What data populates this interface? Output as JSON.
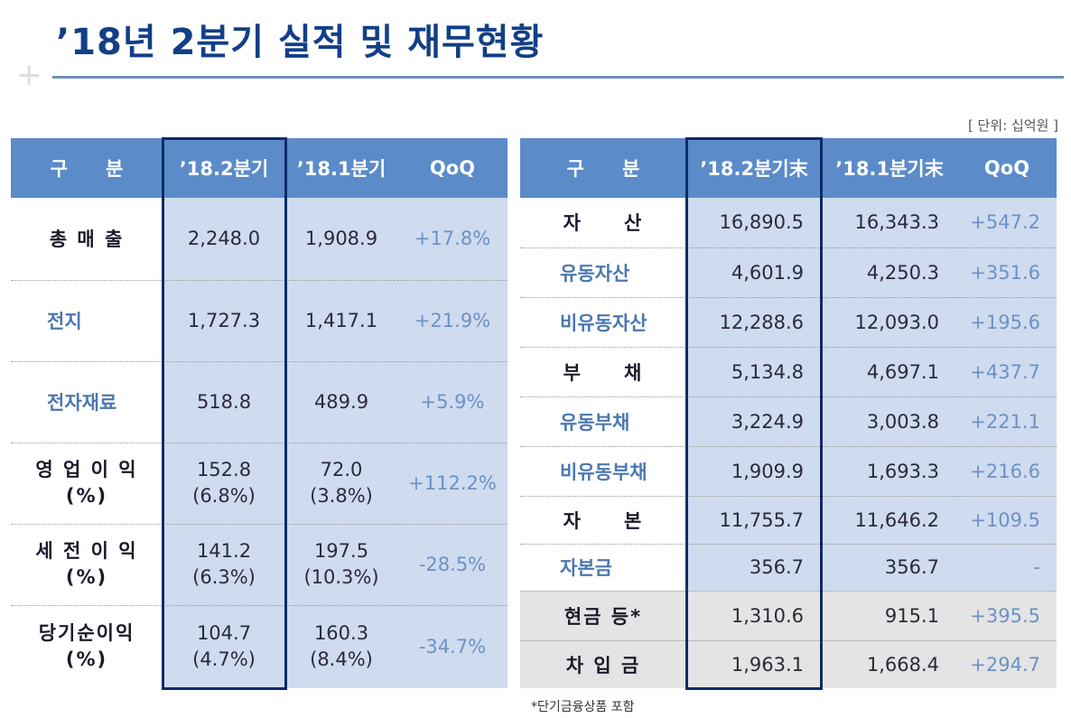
{
  "title": "’18년 2분기 실적 및 재무현황",
  "unit": "[ 단위: 십억원 ]",
  "footnote": "*단기금융상품 포함",
  "left": {
    "headers": [
      "구　　분",
      "’18.2분기",
      "’18.1분기",
      "QoQ"
    ],
    "rows": [
      {
        "label": "총 매 출",
        "a": "2,248.0",
        "b": "1,908.9",
        "q": "+17.8%"
      },
      {
        "label": "전지",
        "a": "1,727.3",
        "b": "1,417.1",
        "q": "+21.9%"
      },
      {
        "label": "전자재료",
        "a": "518.8",
        "b": "489.9",
        "q": "+5.9%"
      },
      {
        "label": "영 업 이 익",
        "label2": "(%)",
        "a": "152.8",
        "a2": "(6.8%)",
        "b": "72.0",
        "b2": "(3.8%)",
        "q": "+112.2%"
      },
      {
        "label": "세 전 이 익",
        "label2": "(%)",
        "a": "141.2",
        "a2": "(6.3%)",
        "b": "197.5",
        "b2": "(10.3%)",
        "q": "-28.5%"
      },
      {
        "label": "당기순이익",
        "label2": "(%)",
        "a": "104.7",
        "a2": "(4.7%)",
        "b": "160.3",
        "b2": "(8.4%)",
        "q": "-34.7%"
      }
    ]
  },
  "right": {
    "headers": [
      "구　　분",
      "’18.2분기末",
      "’18.1분기末",
      "QoQ"
    ],
    "rows": [
      {
        "label": "자　　산",
        "a": "16,890.5",
        "b": "16,343.3",
        "q": "+547.2"
      },
      {
        "label": "유동자산",
        "a": "4,601.9",
        "b": "4,250.3",
        "q": "+351.6"
      },
      {
        "label": "비유동자산",
        "a": "12,288.6",
        "b": "12,093.0",
        "q": "+195.6"
      },
      {
        "label": "부　　채",
        "a": "5,134.8",
        "b": "4,697.1",
        "q": "+437.7"
      },
      {
        "label": "유동부채",
        "a": "3,224.9",
        "b": "3,003.8",
        "q": "+221.1"
      },
      {
        "label": "비유동부채",
        "a": "1,909.9",
        "b": "1,693.3",
        "q": "+216.6"
      },
      {
        "label": "자　　본",
        "a": "11,755.7",
        "b": "11,646.2",
        "q": "+109.5"
      },
      {
        "label": "자본금",
        "a": "356.7",
        "b": "356.7",
        "q": "-"
      },
      {
        "label": "현금 등*",
        "a": "1,310.6",
        "b": "915.1",
        "q": "+395.5"
      },
      {
        "label": "차 입 금",
        "a": "1,963.1",
        "b": "1,668.4",
        "q": "+294.7"
      }
    ]
  }
}
